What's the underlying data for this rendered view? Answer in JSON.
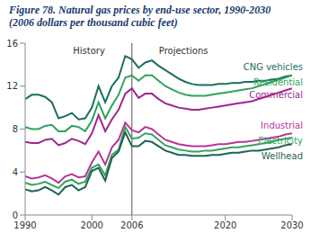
{
  "chart_data": {
    "type": "line",
    "title": "Figure 78. Natural gas prices by end-use sector, 1990-2030 (2006 dollars per thousand cubic feet)",
    "x": [
      1990,
      1991,
      1992,
      1993,
      1994,
      1995,
      1996,
      1997,
      1998,
      1999,
      2000,
      2001,
      2002,
      2003,
      2004,
      2005,
      2006,
      2007,
      2008,
      2009,
      2010,
      2011,
      2012,
      2013,
      2014,
      2015,
      2016,
      2017,
      2018,
      2019,
      2020,
      2021,
      2022,
      2023,
      2024,
      2025,
      2026,
      2027,
      2028,
      2029,
      2030
    ],
    "series": [
      {
        "name": "CNG vehicles",
        "color": "#1b6e5a",
        "values": [
          10.8,
          11.2,
          11.2,
          11.0,
          10.5,
          9.0,
          9.2,
          9.5,
          8.9,
          9.0,
          10.0,
          12.0,
          10.5,
          12.0,
          12.8,
          14.8,
          14.5,
          13.7,
          14.2,
          14.4,
          13.9,
          13.5,
          13.1,
          12.7,
          12.4,
          12.2,
          12.1,
          12.1,
          12.1,
          12.2,
          12.2,
          12.3,
          12.3,
          12.4,
          12.4,
          12.5,
          12.5,
          12.6,
          12.7,
          12.9,
          13.0
        ]
      },
      {
        "name": "Residential",
        "color": "#2fa35c",
        "values": [
          8.2,
          8.0,
          8.0,
          8.3,
          8.4,
          7.8,
          7.8,
          8.3,
          8.2,
          7.8,
          8.8,
          10.5,
          9.0,
          10.2,
          11.2,
          12.8,
          13.0,
          12.5,
          13.0,
          13.0,
          12.5,
          12.0,
          11.7,
          11.4,
          11.2,
          11.1,
          11.1,
          11.1,
          11.2,
          11.3,
          11.4,
          11.5,
          11.6,
          11.7,
          11.8,
          12.0,
          12.2,
          12.4,
          12.6,
          12.8,
          13.0
        ]
      },
      {
        "name": "Commercial",
        "color": "#a0268f",
        "values": [
          6.8,
          6.7,
          6.7,
          7.0,
          7.1,
          6.5,
          6.7,
          7.1,
          6.9,
          6.6,
          7.6,
          9.3,
          7.8,
          8.9,
          9.8,
          11.3,
          11.8,
          10.9,
          11.3,
          11.3,
          10.8,
          10.4,
          10.2,
          10.0,
          9.9,
          9.8,
          9.8,
          9.9,
          10.0,
          10.1,
          10.2,
          10.3,
          10.4,
          10.5,
          10.6,
          10.8,
          11.0,
          11.2,
          11.4,
          11.6,
          11.8
        ]
      },
      {
        "name": "Industrial",
        "color": "#b8349a",
        "values": [
          3.6,
          3.4,
          3.5,
          3.7,
          3.4,
          3.0,
          3.6,
          3.8,
          3.5,
          3.6,
          4.9,
          5.9,
          4.7,
          6.3,
          7.0,
          8.6,
          7.9,
          7.7,
          8.2,
          8.0,
          7.5,
          7.0,
          6.8,
          6.6,
          6.5,
          6.4,
          6.4,
          6.4,
          6.5,
          6.6,
          6.6,
          6.7,
          6.8,
          6.8,
          6.9,
          7.0,
          7.1,
          7.2,
          7.3,
          7.5,
          7.6
        ]
      },
      {
        "name": "Electricity",
        "color": "#34a35e",
        "values": [
          3.0,
          2.8,
          2.9,
          3.1,
          2.8,
          2.5,
          3.1,
          3.3,
          2.9,
          3.1,
          4.4,
          4.7,
          3.7,
          5.6,
          6.1,
          8.2,
          7.1,
          7.2,
          7.6,
          7.5,
          7.0,
          6.5,
          6.3,
          6.1,
          6.0,
          5.9,
          5.9,
          6.0,
          6.0,
          6.1,
          6.2,
          6.3,
          6.3,
          6.4,
          6.5,
          6.6,
          6.7,
          6.8,
          7.0,
          7.1,
          7.2
        ]
      },
      {
        "name": "Wellhead",
        "color": "#1d6352",
        "values": [
          2.4,
          2.2,
          2.3,
          2.6,
          2.3,
          1.9,
          2.6,
          2.8,
          2.3,
          2.6,
          4.1,
          4.4,
          3.2,
          5.3,
          5.9,
          7.7,
          6.4,
          6.4,
          6.9,
          6.8,
          6.4,
          6.0,
          5.8,
          5.6,
          5.6,
          5.5,
          5.5,
          5.5,
          5.6,
          5.6,
          5.7,
          5.8,
          5.8,
          5.9,
          6.0,
          6.0,
          6.1,
          6.2,
          6.3,
          6.5,
          6.6
        ]
      }
    ],
    "xlim": [
      1990,
      2030
    ],
    "xticks": [
      1990,
      2000,
      2006,
      2020,
      2030
    ],
    "ylim": [
      0,
      16
    ],
    "yticks": [
      0,
      4,
      8,
      12,
      16
    ],
    "grid": false,
    "projection_start": 2006,
    "annotations": [
      "History",
      "Projections"
    ]
  }
}
